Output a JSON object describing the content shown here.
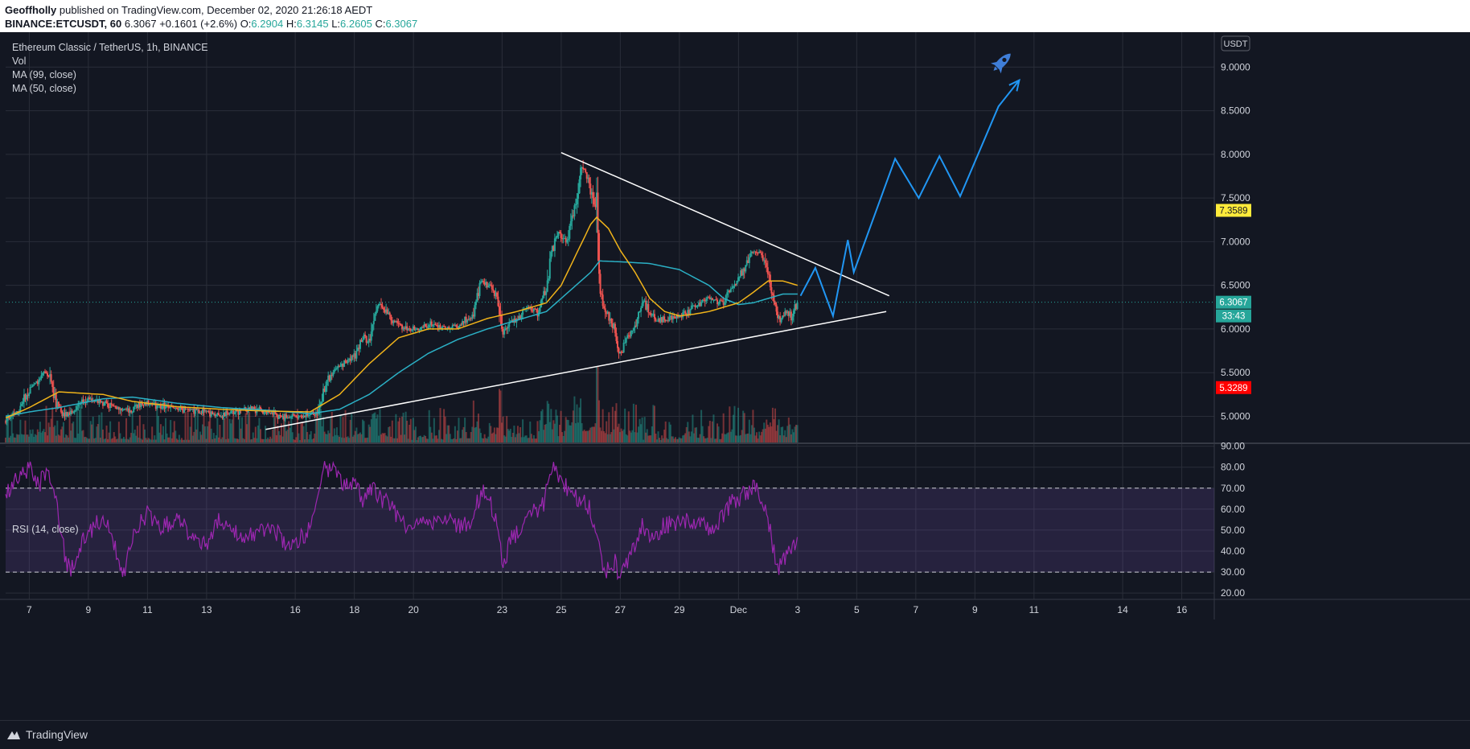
{
  "header": {
    "author": "Geoffholly",
    "published_text": "published on TradingView.com, December 02, 2020 21:26:18 AEDT",
    "symbol": "BINANCE:ETCUSDT, 60",
    "last": "6.3067",
    "change": "+0.1601 (+2.6%)",
    "o_label": "O:",
    "o": "6.2904",
    "h_label": "H:",
    "h": "6.3145",
    "l_label": "L:",
    "l": "6.2605",
    "c_label": "C:",
    "c": "6.3067"
  },
  "legend": {
    "title": "Ethereum Classic / TetherUS, 1h, BINANCE",
    "vol": "Vol",
    "ma99": "MA (99, close)",
    "ma50": "MA (50, close)",
    "rsi": "RSI (14, close)"
  },
  "footer": {
    "brand": "TradingView"
  },
  "colors": {
    "bg": "#131722",
    "grid": "#2a2e39",
    "up": "#26a69a",
    "down": "#ef5350",
    "ma50": "#f0b31a",
    "ma99": "#2bb0c5",
    "rsi": "#9c27b0",
    "projection": "#2196f3",
    "trendline": "#ffffff",
    "yellow_badge": "#ffeb3b",
    "red_badge": "#ff0000"
  },
  "chart_data": {
    "type": "candlestick",
    "price_axis": {
      "unit": "USDT",
      "ticks": [
        "9.0000",
        "8.5000",
        "8.0000",
        "7.5000",
        "7.0000",
        "6.5000",
        "6.0000",
        "5.5000",
        "5.0000"
      ],
      "tick_values": [
        9.0,
        8.5,
        8.0,
        7.5,
        7.0,
        6.5,
        6.0,
        5.5,
        5.0
      ],
      "range": [
        4.7,
        9.4
      ],
      "badges": [
        {
          "label": "7.3589",
          "value": 7.3589,
          "color": "#ffeb3b",
          "text_color": "#131722"
        },
        {
          "label": "6.3067",
          "value": 6.3067,
          "color": "#26a69a",
          "text_color": "#ffffff"
        },
        {
          "label": "33:43",
          "value": 6.15,
          "color": "#26a69a",
          "text_color": "#ffffff"
        },
        {
          "label": "5.3289",
          "value": 5.3289,
          "color": "#ff0000",
          "text_color": "#ffffff"
        }
      ],
      "last_price": 6.3067
    },
    "time_axis": {
      "labels": [
        "7",
        "9",
        "11",
        "13",
        "16",
        "18",
        "20",
        "23",
        "25",
        "27",
        "29",
        "Dec",
        "3",
        "5",
        "7",
        "9",
        "11",
        "14",
        "16"
      ],
      "positions_day": [
        7,
        9,
        11,
        13,
        16,
        18,
        20,
        23,
        25,
        27,
        29,
        31,
        33,
        35,
        37,
        39,
        41,
        44,
        46
      ],
      "range_day": [
        6.2,
        47.1
      ]
    },
    "price_anchors": [
      [
        6.2,
        4.94
      ],
      [
        6.6,
        5.05
      ],
      [
        7.0,
        5.3
      ],
      [
        7.3,
        5.4
      ],
      [
        7.5,
        5.55
      ],
      [
        7.7,
        5.45
      ],
      [
        7.9,
        5.15
      ],
      [
        8.2,
        5.0
      ],
      [
        8.6,
        5.1
      ],
      [
        9.0,
        5.2
      ],
      [
        9.5,
        5.15
      ],
      [
        10.0,
        5.1
      ],
      [
        10.4,
        5.05
      ],
      [
        10.8,
        5.15
      ],
      [
        11.5,
        5.12
      ],
      [
        12.0,
        5.08
      ],
      [
        12.5,
        5.07
      ],
      [
        13.0,
        5.05
      ],
      [
        13.5,
        5.0
      ],
      [
        14.0,
        5.05
      ],
      [
        14.5,
        5.1
      ],
      [
        15.0,
        5.05
      ],
      [
        15.5,
        5.0
      ],
      [
        16.2,
        5.0
      ],
      [
        16.8,
        5.05
      ],
      [
        17.0,
        5.35
      ],
      [
        17.3,
        5.5
      ],
      [
        17.6,
        5.6
      ],
      [
        18.0,
        5.7
      ],
      [
        18.3,
        5.9
      ],
      [
        18.5,
        5.85
      ],
      [
        18.8,
        6.3
      ],
      [
        19.0,
        6.2
      ],
      [
        19.3,
        6.1
      ],
      [
        19.8,
        6.0
      ],
      [
        20.2,
        6.0
      ],
      [
        20.6,
        6.05
      ],
      [
        21.0,
        6.0
      ],
      [
        21.5,
        6.05
      ],
      [
        22.0,
        6.15
      ],
      [
        22.3,
        6.55
      ],
      [
        22.6,
        6.5
      ],
      [
        22.9,
        6.3
      ],
      [
        23.0,
        5.95
      ],
      [
        23.3,
        6.05
      ],
      [
        23.6,
        6.15
      ],
      [
        23.9,
        6.25
      ],
      [
        24.2,
        6.2
      ],
      [
        24.5,
        6.5
      ],
      [
        24.7,
        6.9
      ],
      [
        24.9,
        7.1
      ],
      [
        25.2,
        7.0
      ],
      [
        25.5,
        7.5
      ],
      [
        25.7,
        7.9
      ],
      [
        26.0,
        7.6
      ],
      [
        26.2,
        7.3
      ],
      [
        26.3,
        6.4
      ],
      [
        26.5,
        6.2
      ],
      [
        26.8,
        6.0
      ],
      [
        27.0,
        5.7
      ],
      [
        27.2,
        5.9
      ],
      [
        27.5,
        6.05
      ],
      [
        27.8,
        6.3
      ],
      [
        28.2,
        6.1
      ],
      [
        28.5,
        6.1
      ],
      [
        29.0,
        6.15
      ],
      [
        29.5,
        6.25
      ],
      [
        30.0,
        6.35
      ],
      [
        30.5,
        6.3
      ],
      [
        30.8,
        6.5
      ],
      [
        31.2,
        6.7
      ],
      [
        31.5,
        6.9
      ],
      [
        31.8,
        6.85
      ],
      [
        32.0,
        6.6
      ],
      [
        32.2,
        6.3
      ],
      [
        32.4,
        6.1
      ],
      [
        32.6,
        6.2
      ],
      [
        32.8,
        6.15
      ],
      [
        33.0,
        6.3067
      ]
    ],
    "rsi_anchors": [
      [
        6.2,
        68
      ],
      [
        6.6,
        75
      ],
      [
        7.0,
        80
      ],
      [
        7.3,
        72
      ],
      [
        7.6,
        76
      ],
      [
        7.9,
        66
      ],
      [
        8.2,
        38
      ],
      [
        8.4,
        30
      ],
      [
        8.8,
        45
      ],
      [
        9.2,
        52
      ],
      [
        9.6,
        56
      ],
      [
        10.0,
        38
      ],
      [
        10.2,
        30
      ],
      [
        10.6,
        50
      ],
      [
        11.0,
        58
      ],
      [
        11.4,
        52
      ],
      [
        12.0,
        55
      ],
      [
        12.4,
        49
      ],
      [
        13.0,
        44
      ],
      [
        13.4,
        56
      ],
      [
        13.8,
        53
      ],
      [
        14.2,
        44
      ],
      [
        14.6,
        48
      ],
      [
        15.2,
        52
      ],
      [
        15.6,
        45
      ],
      [
        16.0,
        44
      ],
      [
        16.4,
        48
      ],
      [
        16.7,
        60
      ],
      [
        17.0,
        80
      ],
      [
        17.3,
        78
      ],
      [
        17.6,
        72
      ],
      [
        18.0,
        73
      ],
      [
        18.3,
        64
      ],
      [
        18.6,
        71
      ],
      [
        19.0,
        64
      ],
      [
        19.4,
        58
      ],
      [
        19.8,
        50
      ],
      [
        20.2,
        56
      ],
      [
        20.6,
        52
      ],
      [
        21.0,
        55
      ],
      [
        21.5,
        52
      ],
      [
        22.0,
        54
      ],
      [
        22.3,
        70
      ],
      [
        22.6,
        63
      ],
      [
        22.9,
        52
      ],
      [
        23.0,
        31
      ],
      [
        23.3,
        45
      ],
      [
        23.7,
        52
      ],
      [
        24.0,
        58
      ],
      [
        24.4,
        62
      ],
      [
        24.7,
        80
      ],
      [
        24.9,
        76
      ],
      [
        25.2,
        70
      ],
      [
        25.6,
        65
      ],
      [
        26.0,
        60
      ],
      [
        26.2,
        46
      ],
      [
        26.5,
        30
      ],
      [
        26.8,
        35
      ],
      [
        27.0,
        28
      ],
      [
        27.3,
        35
      ],
      [
        27.7,
        52
      ],
      [
        28.1,
        47
      ],
      [
        28.5,
        52
      ],
      [
        29.0,
        53
      ],
      [
        29.5,
        55
      ],
      [
        30.0,
        50
      ],
      [
        30.4,
        55
      ],
      [
        30.8,
        64
      ],
      [
        31.2,
        67
      ],
      [
        31.6,
        72
      ],
      [
        31.9,
        60
      ],
      [
        32.1,
        48
      ],
      [
        32.3,
        30
      ],
      [
        32.6,
        38
      ],
      [
        32.9,
        44
      ],
      [
        33.0,
        48
      ]
    ],
    "ma50_anchors": [
      [
        6.2,
        4.98
      ],
      [
        7.0,
        5.1
      ],
      [
        8.0,
        5.28
      ],
      [
        9.5,
        5.25
      ],
      [
        10.5,
        5.17
      ],
      [
        12.0,
        5.11
      ],
      [
        13.5,
        5.08
      ],
      [
        15.0,
        5.06
      ],
      [
        16.5,
        5.05
      ],
      [
        17.5,
        5.25
      ],
      [
        18.5,
        5.6
      ],
      [
        19.5,
        5.9
      ],
      [
        20.5,
        6.0
      ],
      [
        21.5,
        6.0
      ],
      [
        22.5,
        6.12
      ],
      [
        23.5,
        6.2
      ],
      [
        24.5,
        6.3
      ],
      [
        25.0,
        6.5
      ],
      [
        25.5,
        6.85
      ],
      [
        26.0,
        7.2
      ],
      [
        26.2,
        7.28
      ],
      [
        26.6,
        7.15
      ],
      [
        27.0,
        6.9
      ],
      [
        27.5,
        6.65
      ],
      [
        28.0,
        6.35
      ],
      [
        28.5,
        6.2
      ],
      [
        29.0,
        6.15
      ],
      [
        29.5,
        6.17
      ],
      [
        30.0,
        6.2
      ],
      [
        30.5,
        6.25
      ],
      [
        31.0,
        6.3
      ],
      [
        31.5,
        6.42
      ],
      [
        32.0,
        6.55
      ],
      [
        32.5,
        6.55
      ],
      [
        33.0,
        6.5
      ]
    ],
    "ma99_anchors": [
      [
        6.2,
        5.0
      ],
      [
        7.0,
        5.05
      ],
      [
        8.0,
        5.1
      ],
      [
        9.5,
        5.2
      ],
      [
        10.5,
        5.22
      ],
      [
        12.0,
        5.15
      ],
      [
        13.5,
        5.1
      ],
      [
        15.0,
        5.07
      ],
      [
        16.5,
        5.03
      ],
      [
        17.5,
        5.08
      ],
      [
        18.5,
        5.25
      ],
      [
        19.5,
        5.5
      ],
      [
        20.5,
        5.72
      ],
      [
        21.5,
        5.88
      ],
      [
        22.5,
        6.0
      ],
      [
        23.5,
        6.1
      ],
      [
        24.5,
        6.2
      ],
      [
        25.5,
        6.5
      ],
      [
        26.0,
        6.65
      ],
      [
        26.3,
        6.78
      ],
      [
        27.0,
        6.77
      ],
      [
        28.0,
        6.75
      ],
      [
        29.0,
        6.68
      ],
      [
        30.0,
        6.5
      ],
      [
        30.5,
        6.35
      ],
      [
        31.0,
        6.28
      ],
      [
        31.5,
        6.3
      ],
      [
        32.0,
        6.35
      ],
      [
        32.5,
        6.4
      ],
      [
        33.0,
        6.4
      ]
    ],
    "trendlines": [
      {
        "from": [
          15.0,
          4.85
        ],
        "to": [
          36.0,
          6.2
        ]
      },
      {
        "from": [
          25.0,
          8.02
        ],
        "to": [
          36.1,
          6.38
        ]
      }
    ],
    "projection": [
      [
        33.1,
        6.38
      ],
      [
        33.6,
        6.7
      ],
      [
        34.2,
        6.15
      ],
      [
        34.7,
        7.02
      ],
      [
        34.9,
        6.65
      ],
      [
        36.3,
        7.95
      ],
      [
        37.1,
        7.5
      ],
      [
        37.8,
        7.98
      ],
      [
        38.5,
        7.52
      ],
      [
        39.8,
        8.55
      ],
      [
        40.5,
        8.85
      ]
    ],
    "rsi_axis": {
      "ticks": [
        "90.00",
        "80.00",
        "70.00",
        "60.00",
        "50.00",
        "40.00",
        "30.00",
        "20.00"
      ],
      "tick_values": [
        90,
        80,
        70,
        60,
        50,
        40,
        30,
        20
      ],
      "range": [
        17,
        91
      ],
      "band": [
        30,
        70
      ]
    }
  }
}
